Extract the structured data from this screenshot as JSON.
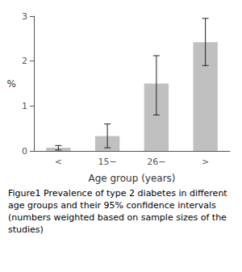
{
  "chart_data": {
    "type": "bar",
    "categories": [
      "<",
      "15−",
      "26−",
      ">"
    ],
    "values": [
      0.07,
      0.33,
      1.5,
      2.42
    ],
    "ci_low": [
      0.02,
      0.07,
      0.8,
      1.9
    ],
    "ci_high": [
      0.12,
      0.6,
      2.12,
      2.95
    ],
    "color": "#c0c0c0",
    "ylabel": "%",
    "xlabel": "Age group (years)",
    "ylim": [
      0,
      3
    ],
    "yticks": [
      0,
      1,
      2,
      3
    ],
    "grid": false,
    "caption": "Figure1 Prevalence of type 2 diabetes in different age groups and their 95% confidence intervals (numbers weighted based on sample sizes of the studies)"
  }
}
